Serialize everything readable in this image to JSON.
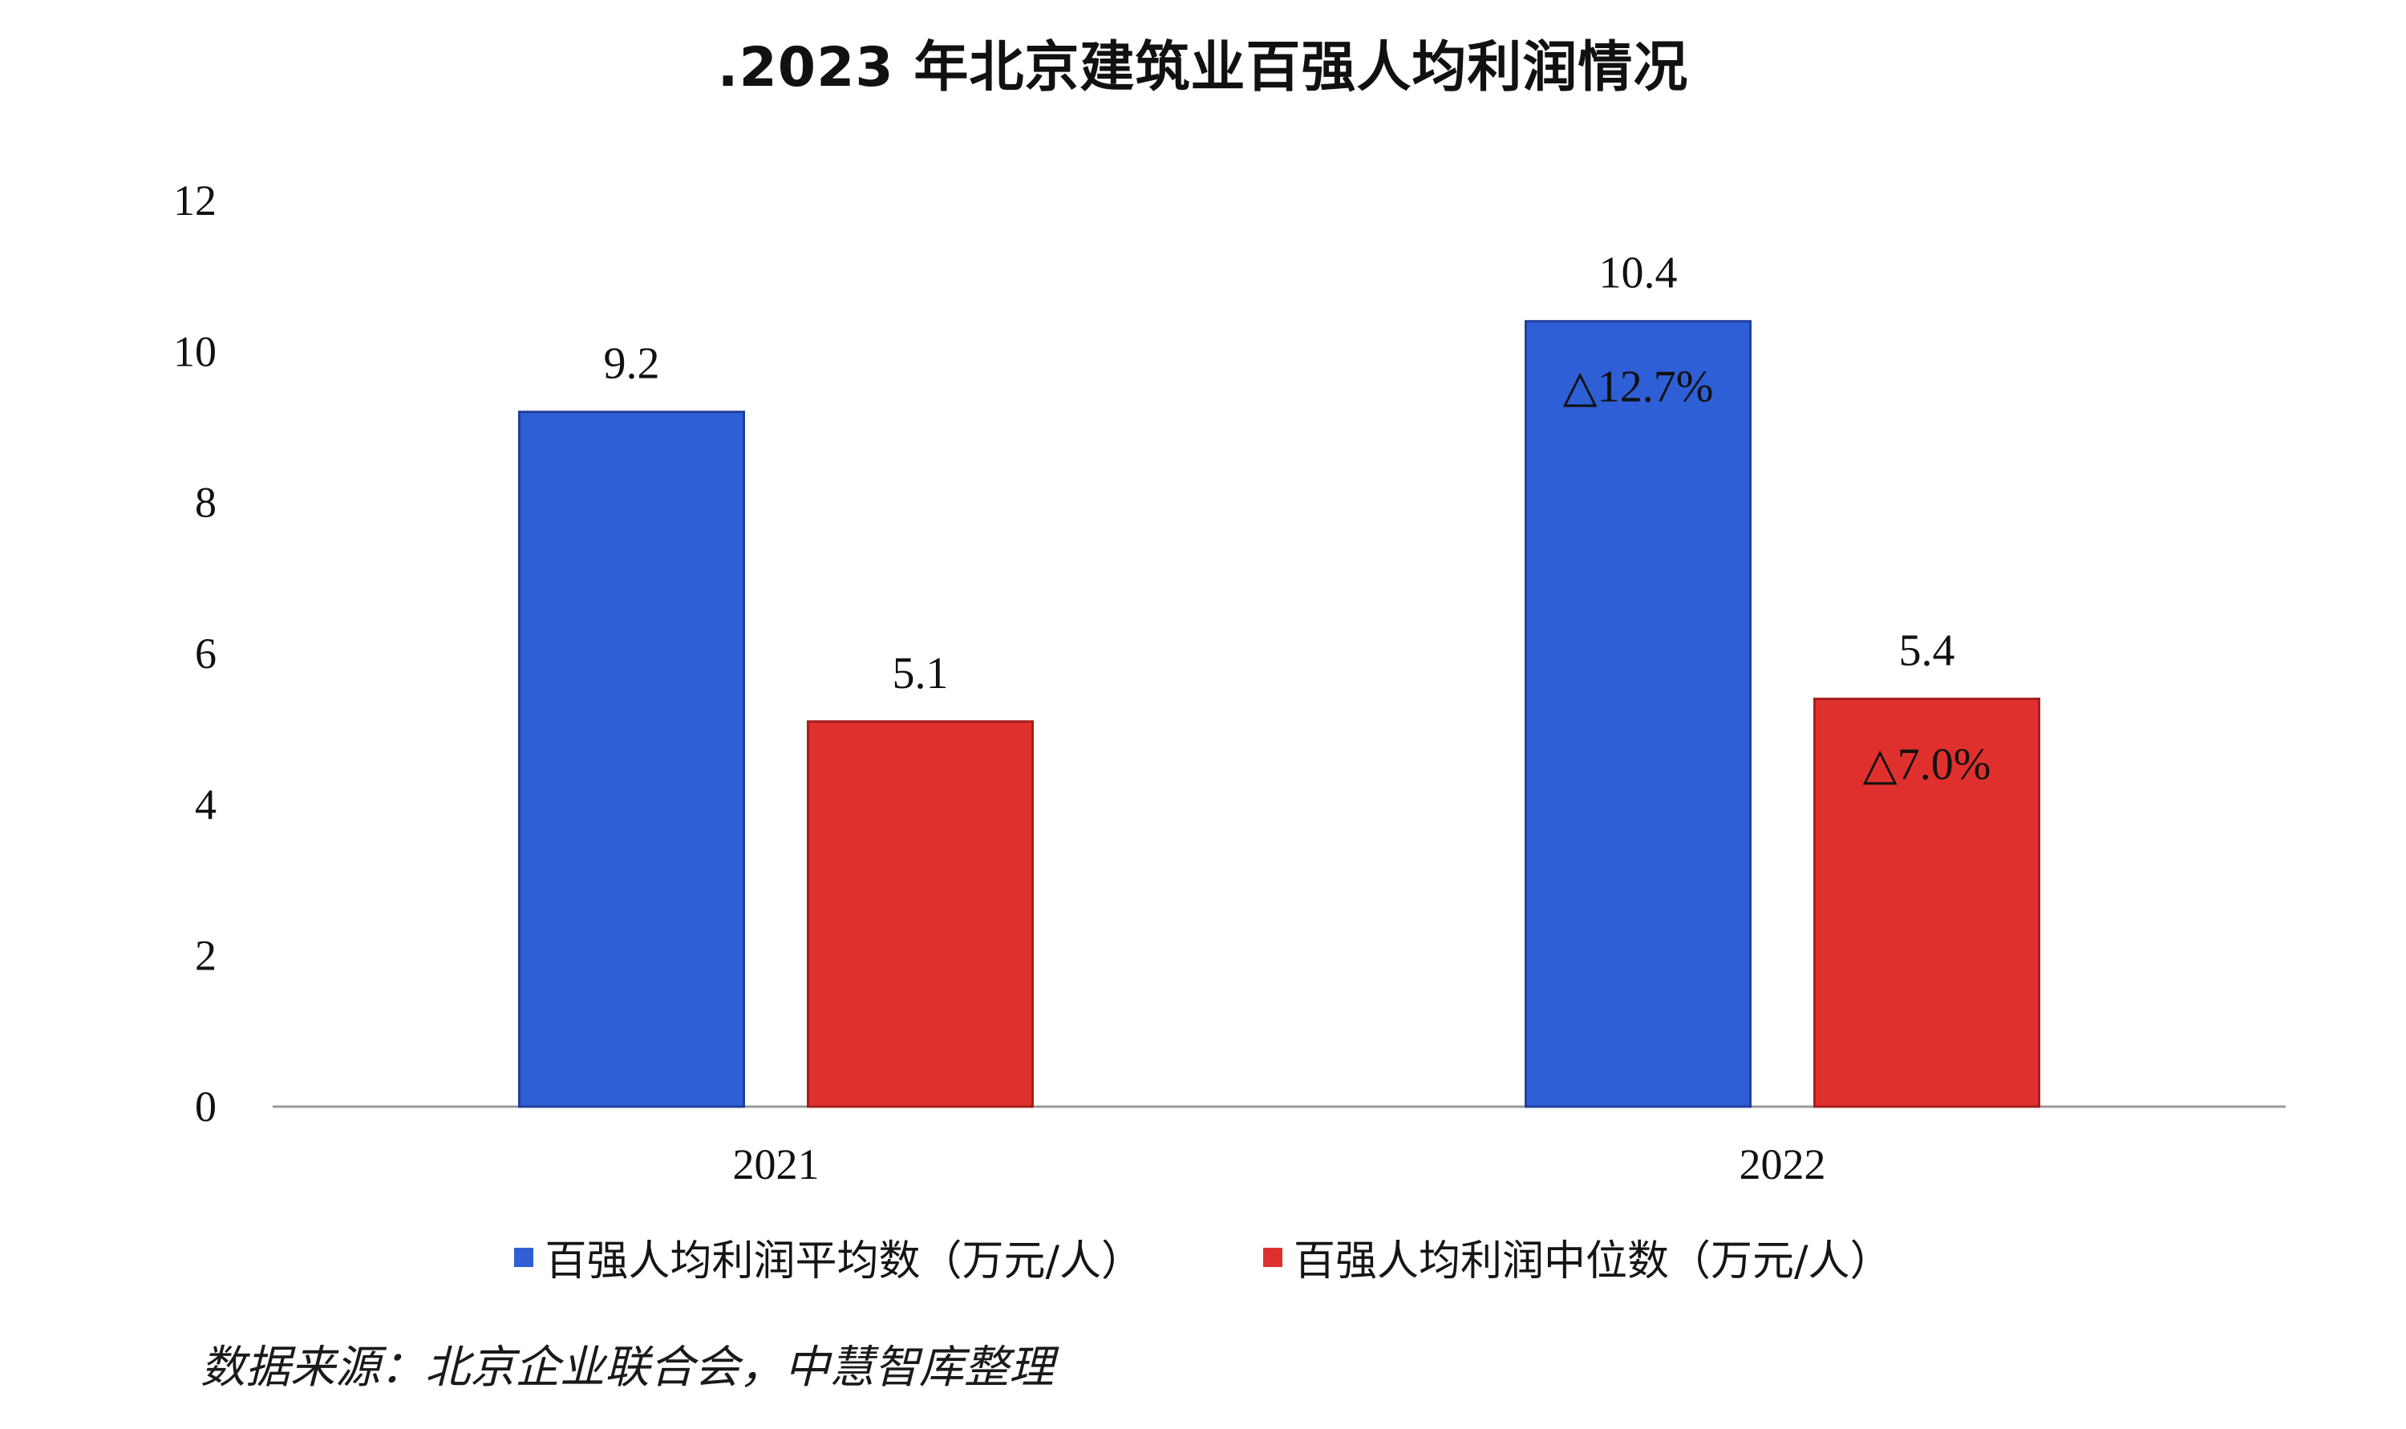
{
  "chart_data": {
    "type": "bar",
    "title": ".2023 年北京建筑业百强人均利润情况",
    "categories": [
      "2021",
      "2022"
    ],
    "series": [
      {
        "name": "百强人均利润平均数（万元/人）",
        "color": "#2f5fd6",
        "values": [
          9.2,
          10.4
        ],
        "value_labels": [
          "9.2",
          "10.4"
        ],
        "annotations": [
          "",
          "△12.7%"
        ]
      },
      {
        "name": "百强人均利润中位数（万元/人）",
        "color": "#e0302e",
        "values": [
          5.1,
          5.4
        ],
        "value_labels": [
          "5.1",
          "5.4"
        ],
        "annotations": [
          "",
          "△7.0%"
        ]
      }
    ],
    "yticks": [
      "0",
      "2",
      "4",
      "6",
      "8",
      "10",
      "12"
    ],
    "ylim": [
      0,
      12
    ],
    "grid": false,
    "legend_position": "bottom"
  },
  "source_note": "数据来源：北京企业联合会，中慧智库整理"
}
